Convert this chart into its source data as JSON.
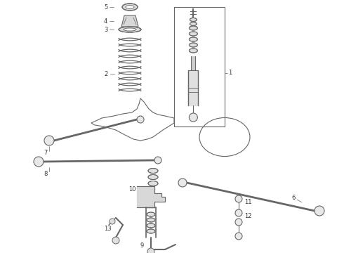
{
  "bg_color": "#ffffff",
  "line_color": "#666666",
  "label_color": "#333333",
  "figsize": [
    4.9,
    3.6
  ],
  "dpi": 100
}
